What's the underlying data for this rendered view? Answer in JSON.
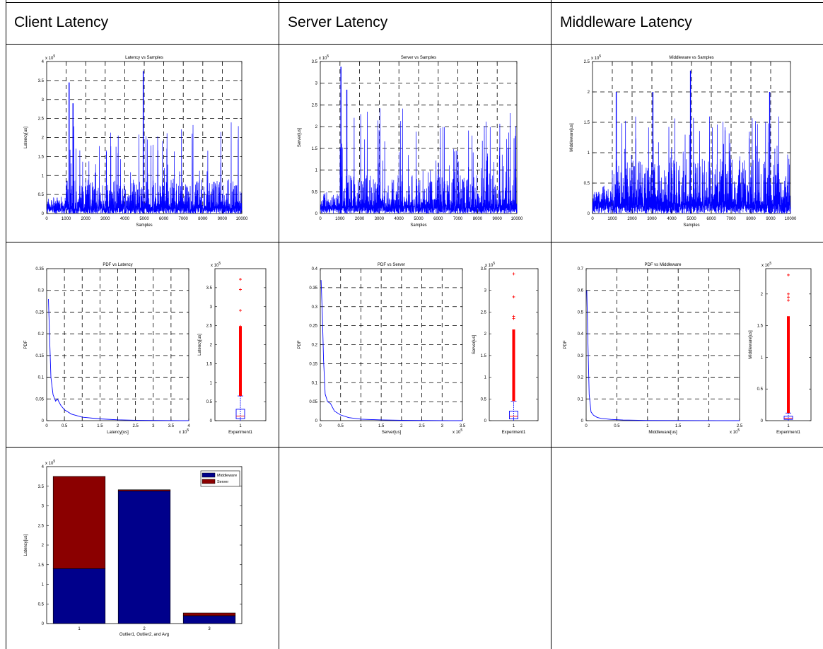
{
  "columns": [
    "Client Latency",
    "Server Latency",
    "Middleware Latency"
  ],
  "colors": {
    "series": "#0000ff",
    "outlier": "#ff0000",
    "middleware_bar": "#00008b",
    "server_bar": "#8b0000",
    "grid": "#000000"
  },
  "chart_data": [
    {
      "id": "client-ts",
      "type": "line",
      "title": "Latency vs Samples",
      "xlabel": "Samples",
      "ylabel": "Latency[us]",
      "exponent": "x 10^5",
      "xlim": [
        0,
        10000
      ],
      "ylim": [
        0,
        4
      ],
      "xticks": [
        "0",
        "1000",
        "2000",
        "3000",
        "4000",
        "5000",
        "6000",
        "7000",
        "8000",
        "9000",
        "10000"
      ],
      "yticks": [
        "0",
        "0.5",
        "1",
        "1.5",
        "2",
        "2.5",
        "3",
        "3.5",
        "4"
      ],
      "grid": true,
      "peaks": [
        {
          "x": 1150,
          "y": 3.45
        },
        {
          "x": 1350,
          "y": 2.9
        },
        {
          "x": 4950,
          "y": 3.75
        }
      ],
      "base_max": 2.4,
      "seed": 7
    },
    {
      "id": "server-ts",
      "type": "line",
      "title": "Server vs Samples",
      "xlabel": "Samples",
      "ylabel": "Server[us]",
      "exponent": "x 10^5",
      "xlim": [
        0,
        10000
      ],
      "ylim": [
        0,
        3.5
      ],
      "xticks": [
        "0",
        "1000",
        "2000",
        "3000",
        "4000",
        "5000",
        "6000",
        "7000",
        "8000",
        "9000",
        "10000"
      ],
      "yticks": [
        "0",
        "0.5",
        "1",
        "1.5",
        "2",
        "2.5",
        "3",
        "3.5"
      ],
      "grid": true,
      "peaks": [
        {
          "x": 1050,
          "y": 3.38
        },
        {
          "x": 1350,
          "y": 2.85
        }
      ],
      "base_max": 2.45,
      "seed": 11
    },
    {
      "id": "middleware-ts",
      "type": "line",
      "title": "Middleware vs Samples",
      "xlabel": "Samples",
      "ylabel": "Middleware[us]",
      "exponent": "x 10^5",
      "xlim": [
        0,
        10000
      ],
      "ylim": [
        0,
        2.5
      ],
      "xticks": [
        "0",
        "1000",
        "2000",
        "3000",
        "4000",
        "5000",
        "6000",
        "7000",
        "8000",
        "9000",
        "10000"
      ],
      "yticks": [
        "0",
        "0.5",
        "1",
        "1.5",
        "2",
        "2.5"
      ],
      "grid": true,
      "peaks": [
        {
          "x": 4950,
          "y": 2.35
        },
        {
          "x": 1200,
          "y": 2.0
        },
        {
          "x": 3050,
          "y": 2.0
        },
        {
          "x": 8950,
          "y": 2.0
        }
      ],
      "base_max": 1.7,
      "seed": 23
    },
    {
      "id": "client-pdf",
      "type": "line",
      "title": "PDF vs Latency",
      "xlabel": "Latency[us]",
      "ylabel": "PDF",
      "exponent": "x 10^5",
      "xlim": [
        0,
        4
      ],
      "ylim": [
        0,
        0.35
      ],
      "xticks": [
        "0",
        "0.5",
        "1",
        "1.5",
        "2",
        "2.5",
        "3",
        "3.5",
        "4"
      ],
      "yticks": [
        "0",
        "0.05",
        "0.1",
        "0.15",
        "0.2",
        "0.25",
        "0.3",
        "0.35"
      ],
      "grid": true,
      "x": [
        0.05,
        0.08,
        0.12,
        0.18,
        0.25,
        0.3,
        0.4,
        0.5,
        0.7,
        1.0,
        1.5,
        2.0,
        2.5,
        4.0
      ],
      "y": [
        0.28,
        0.2,
        0.1,
        0.06,
        0.045,
        0.05,
        0.035,
        0.025,
        0.015,
        0.008,
        0.004,
        0.002,
        0.001,
        0.0
      ]
    },
    {
      "id": "server-pdf",
      "type": "line",
      "title": "PDF vs Server",
      "xlabel": "Server[us]",
      "ylabel": "PDF",
      "exponent": "x 10^5",
      "xlim": [
        0,
        3.5
      ],
      "ylim": [
        0,
        0.4
      ],
      "xticks": [
        "0",
        "0.5",
        "1",
        "1.5",
        "2",
        "2.5",
        "3",
        "3.5"
      ],
      "yticks": [
        "0",
        "0.05",
        "0.1",
        "0.15",
        "0.2",
        "0.25",
        "0.3",
        "0.35",
        "0.4"
      ],
      "grid": true,
      "x": [
        0.02,
        0.05,
        0.08,
        0.12,
        0.18,
        0.25,
        0.35,
        0.5,
        0.7,
        1.0,
        1.5,
        2.0,
        3.5
      ],
      "y": [
        0.37,
        0.28,
        0.16,
        0.07,
        0.05,
        0.045,
        0.025,
        0.015,
        0.008,
        0.004,
        0.002,
        0.001,
        0.0
      ]
    },
    {
      "id": "middleware-pdf",
      "type": "line",
      "title": "PDF vs Middleware",
      "xlabel": "Middleware[us]",
      "ylabel": "PDF",
      "exponent": "x 10^5",
      "xlim": [
        0,
        2.5
      ],
      "ylim": [
        0,
        0.7
      ],
      "xticks": [
        "0",
        "0.5",
        "1",
        "1.5",
        "2",
        "2.5"
      ],
      "yticks": [
        "0",
        "0.1",
        "0.2",
        "0.3",
        "0.4",
        "0.5",
        "0.6",
        "0.7"
      ],
      "grid": true,
      "x": [
        0.01,
        0.03,
        0.05,
        0.08,
        0.12,
        0.18,
        0.25,
        0.4,
        0.6,
        1.0,
        2.5
      ],
      "y": [
        0.6,
        0.35,
        0.12,
        0.04,
        0.025,
        0.015,
        0.01,
        0.006,
        0.003,
        0.001,
        0.0
      ]
    },
    {
      "id": "client-box",
      "type": "box",
      "ylabel": "Latency[us]",
      "exponent": "x 10^5",
      "category": "Experiment1",
      "ylim": [
        0,
        4
      ],
      "yticks": [
        "0",
        "0.5",
        "1",
        "1.5",
        "2",
        "2.5",
        "3",
        "3.5"
      ],
      "q1": 0.05,
      "median": 0.12,
      "q3": 0.3,
      "whisker_low": 0.0,
      "whisker_high": 0.65,
      "outliers": [
        0.7,
        3.72,
        3.45,
        2.9,
        2.48
      ],
      "outlier_band": [
        0.65,
        2.48
      ]
    },
    {
      "id": "server-box",
      "type": "box",
      "ylabel": "Server[us]",
      "exponent": "x 10^5",
      "category": "Experiment1",
      "ylim": [
        0,
        3.5
      ],
      "yticks": [
        "0",
        "0.5",
        "1",
        "1.5",
        "2",
        "2.5",
        "3",
        "3.5"
      ],
      "q1": 0.04,
      "median": 0.1,
      "q3": 0.22,
      "whisker_low": 0.0,
      "whisker_high": 0.45,
      "outliers": [
        3.38,
        2.85,
        2.4,
        2.35
      ],
      "outlier_band": [
        0.45,
        2.1
      ]
    },
    {
      "id": "middleware-box",
      "type": "box",
      "ylabel": "Middleware[us]",
      "exponent": "x 10^5",
      "category": "Experiment1",
      "ylim": [
        0,
        2.4
      ],
      "yticks": [
        "0",
        "0.5",
        "1",
        "1.5",
        "2"
      ],
      "q1": 0.02,
      "median": 0.04,
      "q3": 0.07,
      "whisker_low": 0.0,
      "whisker_high": 0.12,
      "outliers": [
        2.3,
        2.0,
        1.95,
        1.9
      ],
      "outlier_band": [
        0.12,
        1.65
      ]
    },
    {
      "id": "stacked-bar",
      "type": "bar",
      "stacked": true,
      "ylabel": "Latency[us]",
      "xlabel": "Outlier1, Outlier2, and Avg",
      "exponent": "x 10^5",
      "categories": [
        "1",
        "2",
        "3"
      ],
      "ylim": [
        0,
        4
      ],
      "yticks": [
        "0",
        "0.5",
        "1",
        "1.5",
        "2",
        "2.5",
        "3",
        "3.5",
        "4"
      ],
      "legend_position": "top-right",
      "series": [
        {
          "name": "Middleware",
          "values": [
            1.4,
            3.38,
            0.2
          ]
        },
        {
          "name": "Server",
          "values": [
            2.35,
            0.03,
            0.07
          ]
        }
      ]
    }
  ]
}
